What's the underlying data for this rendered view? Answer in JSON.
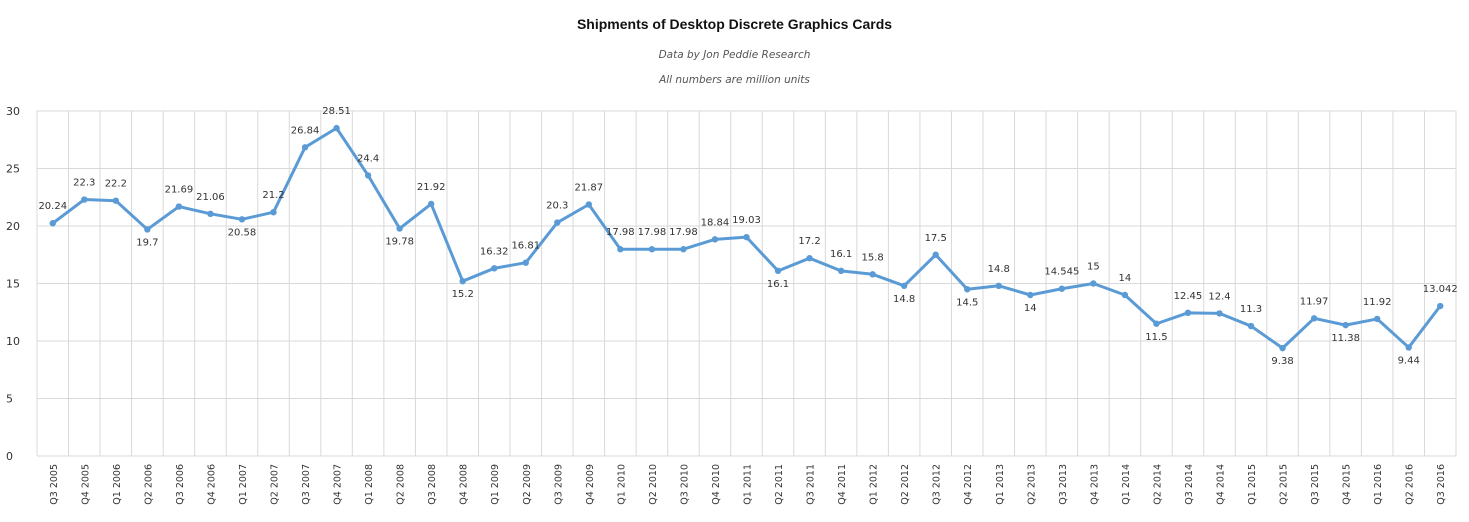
{
  "chart_data": {
    "type": "line",
    "title": "Shipments of Desktop Discrete Graphics Cards",
    "subtitle": "Data by Jon Peddie Research",
    "note": "All numbers are million units",
    "categories": [
      "Q3 2005",
      "Q4 2005",
      "Q1 2006",
      "Q2 2006",
      "Q3 2006",
      "Q4 2006",
      "Q1 2007",
      "Q2 2007",
      "Q3 2007",
      "Q4 2007",
      "Q1 2008",
      "Q2 2008",
      "Q3 2008",
      "Q4 2008",
      "Q1 2009",
      "Q2 2009",
      "Q3 2009",
      "Q4 2009",
      "Q1 2010",
      "Q2 2010",
      "Q3 2010",
      "Q4 2010",
      "Q1 2011",
      "Q2 2011",
      "Q3 2011",
      "Q4 2011",
      "Q1 2012",
      "Q2 2012",
      "Q3 2012",
      "Q4 2012",
      "Q1 2013",
      "Q2 2013",
      "Q3 2013",
      "Q4 2013",
      "Q1 2014",
      "Q2 2014",
      "Q3 2014",
      "Q4 2014",
      "Q1 2015",
      "Q2 2015",
      "Q3 2015",
      "Q4 2015",
      "Q1 2016",
      "Q2 2016",
      "Q3 2016"
    ],
    "values": [
      20.24,
      22.3,
      22.2,
      19.7,
      21.69,
      21.06,
      20.58,
      21.2,
      26.84,
      28.51,
      24.4,
      19.78,
      21.92,
      15.2,
      16.32,
      16.81,
      20.3,
      21.87,
      17.98,
      17.98,
      17.98,
      18.84,
      19.03,
      16.1,
      17.2,
      16.1,
      15.8,
      14.8,
      17.5,
      14.5,
      14.8,
      14,
      14.545,
      15,
      14,
      11.5,
      12.45,
      12.4,
      11.3,
      9.38,
      11.97,
      11.38,
      11.92,
      9.44,
      13.042
    ],
    "ylim": [
      0,
      30
    ],
    "yticks": [
      0,
      5,
      10,
      15,
      20,
      25,
      30
    ],
    "grid": true,
    "line_color": "#5b9bd5",
    "grid_color": "#d9d9d9"
  }
}
